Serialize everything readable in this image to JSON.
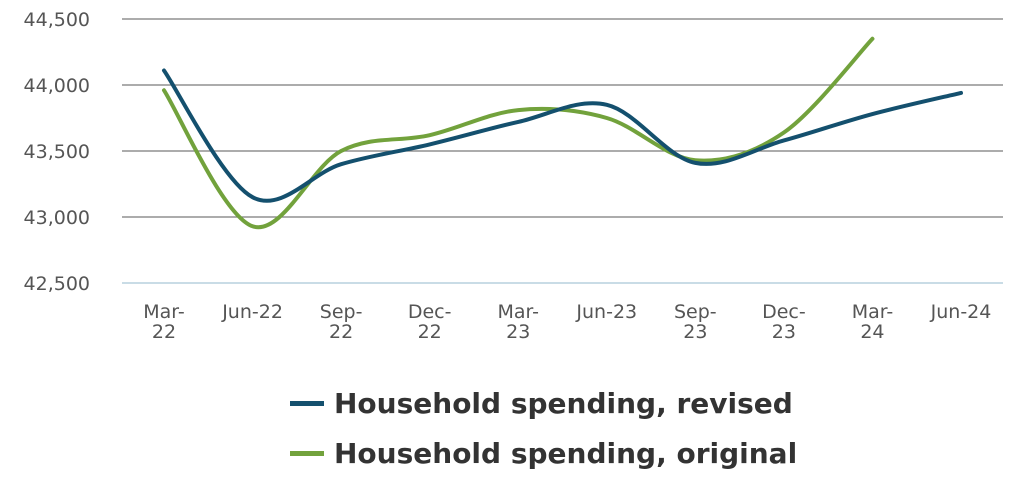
{
  "chart_data": {
    "type": "line",
    "categories": [
      [
        "Mar-",
        "22"
      ],
      [
        "Jun-22"
      ],
      [
        "Sep-",
        "22"
      ],
      [
        "Dec-",
        "22"
      ],
      [
        "Mar-",
        "23"
      ],
      [
        "Jun-23"
      ],
      [
        "Sep-",
        "23"
      ],
      [
        "Dec-",
        "23"
      ],
      [
        "Mar-",
        "24"
      ],
      [
        "Jun-24"
      ]
    ],
    "yticks": [
      "42,500",
      "43,000",
      "43,500",
      "44,000",
      "44,500"
    ],
    "ylim": [
      42500,
      44500
    ],
    "grid": true,
    "legend_position": "bottom",
    "series": [
      {
        "name": "Household spending, revised",
        "color": "#14506e",
        "values": [
          44110,
          43150,
          43400,
          43550,
          43720,
          43850,
          43410,
          43580,
          43780,
          43940
        ]
      },
      {
        "name": "Household spending, original",
        "color": "#72a23c",
        "values": [
          43960,
          42930,
          43500,
          43620,
          43810,
          43750,
          43430,
          43640,
          44350,
          null
        ]
      }
    ]
  }
}
